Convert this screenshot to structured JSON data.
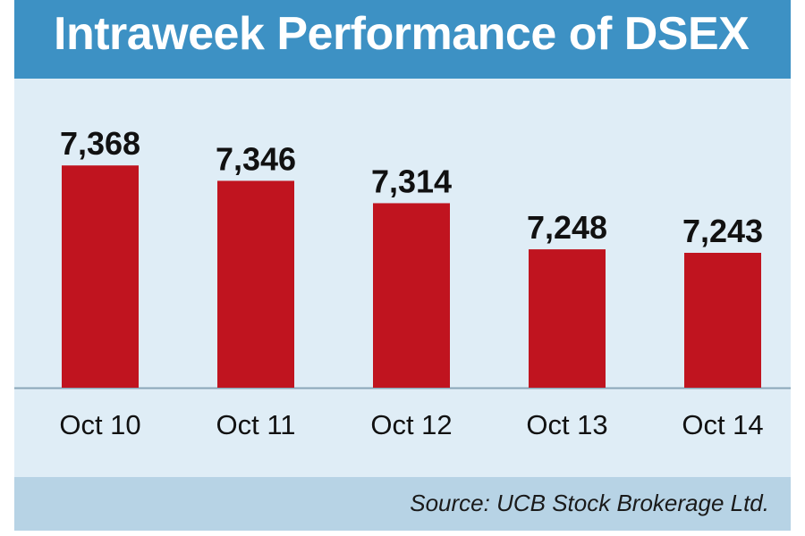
{
  "chart_data": {
    "type": "bar",
    "title": "Intraweek Performance of DSEX",
    "categories": [
      "Oct 10",
      "Oct 11",
      "Oct 12",
      "Oct 13",
      "Oct 14"
    ],
    "values": [
      7368,
      7346,
      7314,
      7248,
      7243
    ],
    "value_labels": [
      "7,368",
      "7,346",
      "7,314",
      "7,248",
      "7,243"
    ],
    "xlabel": "",
    "ylabel": "",
    "ylim": [
      7050,
      7390
    ],
    "grid": false,
    "bar_color": "#c0141f",
    "source": "Source: UCB Stock Brokerage Ltd."
  }
}
